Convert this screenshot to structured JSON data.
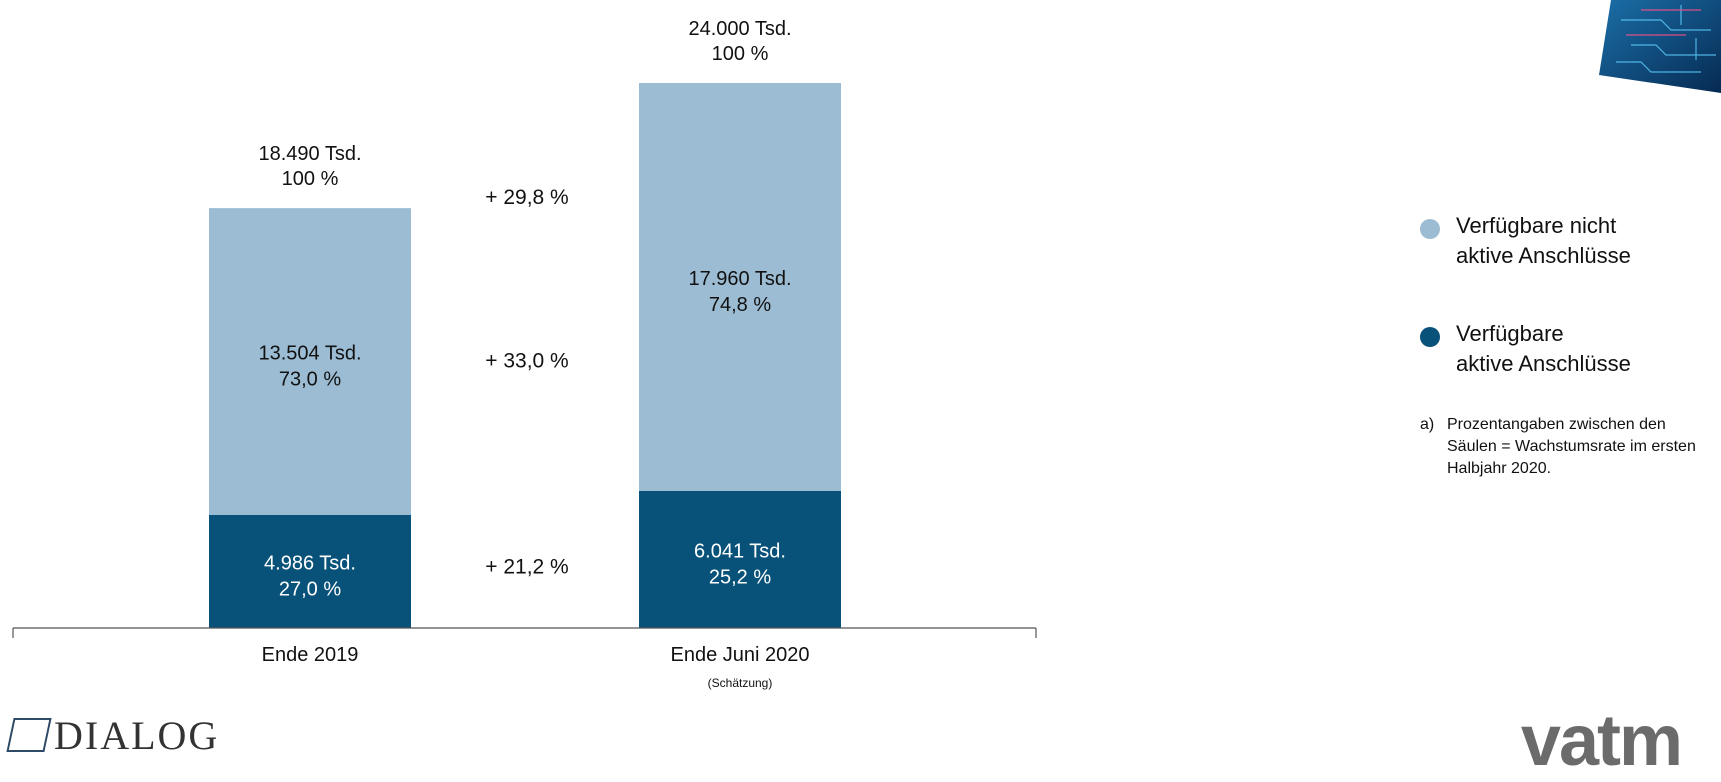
{
  "colors": {
    "inactive": "#9bbcd3",
    "active": "#08527a",
    "axis": "#555555"
  },
  "chart_data": {
    "type": "bar",
    "stacked": true,
    "categories": [
      "Ende 2019",
      "Ende Juni 2020"
    ],
    "category_notes": [
      "",
      "(Schätzung)"
    ],
    "series": [
      {
        "name": "Verfügbare aktive Anschlüsse",
        "values": [
          4986,
          6041
        ],
        "value_labels": [
          "4.986 Tsd.",
          "6.041 Tsd."
        ],
        "percent_labels": [
          "27,0 %",
          "25,2 %"
        ]
      },
      {
        "name": "Verfügbare nicht aktive Anschlüsse",
        "values": [
          13504,
          17960
        ],
        "value_labels": [
          "13.504 Tsd.",
          "17.960 Tsd."
        ],
        "percent_labels": [
          "73,0 %",
          "74,8 %"
        ]
      }
    ],
    "totals": {
      "values": [
        18490,
        24000
      ],
      "value_labels": [
        "18.490 Tsd.",
        "24.000 Tsd."
      ],
      "percent_labels": [
        "100 %",
        "100 %"
      ]
    },
    "growth_labels": {
      "total": "+ 29,8 %",
      "inactive": "+ 33,0 %",
      "active": "+ 21,2 %"
    },
    "ylim": [
      0,
      24000
    ],
    "grid": false,
    "legend_position": "right"
  },
  "legend": {
    "items": [
      {
        "text_line1": "Verfügbare nicht",
        "text_line2": "aktive Anschlüsse",
        "color_key": "inactive"
      },
      {
        "text_line1": "Verfügbare",
        "text_line2": "aktive Anschlüsse",
        "color_key": "active"
      }
    ]
  },
  "footnote": {
    "mark": "a)",
    "text": "Prozentangaben zwischen den Säulen = Wachstumsrate im ersten Halbjahr 2020."
  },
  "logos": {
    "left": "DIALOG",
    "right": "vatm"
  }
}
